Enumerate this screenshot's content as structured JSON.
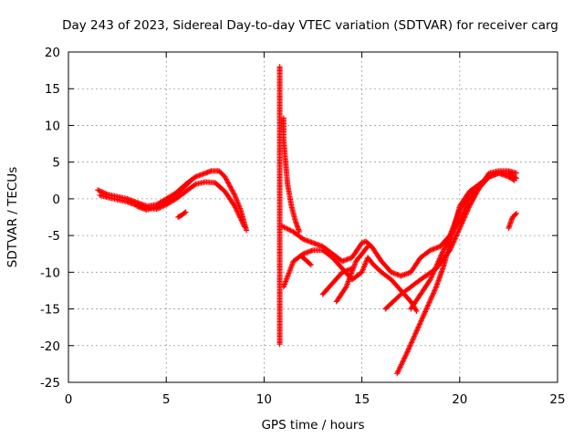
{
  "chart_data": {
    "type": "scatter",
    "title": "Day 243 of 2023, Sidereal Day-to-day VTEC variation (SDTVAR) for receiver carg",
    "xlabel": "GPS time / hours",
    "ylabel": "SDTVAR / TECUs",
    "xlim": [
      0,
      25
    ],
    "ylim": [
      -25,
      20
    ],
    "xticks": [
      0,
      5,
      10,
      15,
      20,
      25
    ],
    "yticks": [
      20,
      15,
      10,
      5,
      0,
      -5,
      -10,
      -15,
      -20,
      -25
    ],
    "xtick_labels": [
      "0",
      "5",
      "10",
      "15",
      "20",
      "25"
    ],
    "ytick_labels": [
      "20",
      "15",
      "10",
      "5",
      "0",
      "-5",
      "-10",
      "-15",
      "-20",
      "-25"
    ],
    "grid": true,
    "marker": "plus",
    "color": "#ff0000",
    "series": [
      {
        "name": "morning-band-a",
        "points": [
          [
            1.5,
            1.2
          ],
          [
            2,
            0.6
          ],
          [
            2.5,
            0.3
          ],
          [
            3,
            0
          ],
          [
            3.5,
            -0.5
          ],
          [
            4,
            -1
          ],
          [
            4.5,
            -0.8
          ],
          [
            5,
            0
          ],
          [
            5.5,
            0.8
          ],
          [
            6,
            2
          ],
          [
            6.5,
            3
          ],
          [
            7,
            3.5
          ],
          [
            7.3,
            3.8
          ],
          [
            7.7,
            3.8
          ],
          [
            8,
            3
          ],
          [
            8.5,
            0.5
          ],
          [
            8.8,
            -1.5
          ],
          [
            9.1,
            -4.3
          ]
        ]
      },
      {
        "name": "morning-band-b",
        "points": [
          [
            1.6,
            0.5
          ],
          [
            2,
            0.2
          ],
          [
            2.5,
            -0.1
          ],
          [
            3,
            -0.4
          ],
          [
            3.5,
            -0.9
          ],
          [
            4,
            -1.2
          ],
          [
            4.5,
            -1.4
          ],
          [
            5,
            -0.8
          ],
          [
            5.5,
            0
          ],
          [
            6,
            1
          ],
          [
            6.5,
            2
          ],
          [
            7,
            2.3
          ],
          [
            7.5,
            2.2
          ],
          [
            8,
            1
          ],
          [
            8.5,
            -1
          ],
          [
            9,
            -3.8
          ]
        ]
      },
      {
        "name": "morning-band-c",
        "points": [
          [
            3.5,
            -1
          ],
          [
            4,
            -1.5
          ],
          [
            4.5,
            -1.1
          ],
          [
            5,
            -0.3
          ],
          [
            5.5,
            0.6
          ],
          [
            6,
            1.8
          ],
          [
            6.3,
            2.6
          ]
        ]
      },
      {
        "name": "short-arc-6h",
        "points": [
          [
            5.6,
            -2.5
          ],
          [
            5.8,
            -2.2
          ],
          [
            6,
            -1.8
          ]
        ]
      },
      {
        "name": "vertical-spike",
        "points": [
          [
            10.8,
            18
          ],
          [
            10.8,
            16
          ],
          [
            10.8,
            14
          ],
          [
            10.8,
            12
          ],
          [
            10.8,
            10
          ],
          [
            10.8,
            8
          ],
          [
            10.8,
            6
          ],
          [
            10.8,
            4
          ],
          [
            10.8,
            2
          ],
          [
            10.8,
            0
          ],
          [
            10.8,
            -2
          ],
          [
            10.8,
            -4
          ],
          [
            10.8,
            -6
          ],
          [
            10.8,
            -8
          ],
          [
            10.8,
            -10
          ],
          [
            10.8,
            -12
          ],
          [
            10.8,
            -14
          ],
          [
            10.8,
            -16
          ],
          [
            10.8,
            -18
          ],
          [
            10.8,
            -19.8
          ]
        ]
      },
      {
        "name": "decay-from-spike",
        "points": [
          [
            11,
            11
          ],
          [
            11,
            8
          ],
          [
            11.1,
            5
          ],
          [
            11.2,
            2
          ],
          [
            11.4,
            -1
          ],
          [
            11.6,
            -3
          ],
          [
            11.8,
            -4.5
          ]
        ]
      },
      {
        "name": "midday-upper",
        "points": [
          [
            10.9,
            -3.7
          ],
          [
            11.5,
            -4.5
          ],
          [
            12,
            -5.5
          ],
          [
            12.5,
            -6
          ],
          [
            13,
            -6.5
          ],
          [
            13.5,
            -7.5
          ],
          [
            14,
            -8.5
          ],
          [
            14.5,
            -8
          ],
          [
            15,
            -6
          ],
          [
            15.2,
            -5.8
          ],
          [
            15.5,
            -6.5
          ],
          [
            16,
            -8.5
          ],
          [
            16.5,
            -10
          ],
          [
            17,
            -10.5
          ],
          [
            17.5,
            -10
          ],
          [
            18,
            -8
          ],
          [
            18.5,
            -7
          ],
          [
            19,
            -6.5
          ],
          [
            19.5,
            -5
          ],
          [
            20,
            -3
          ],
          [
            20.5,
            0
          ],
          [
            21,
            1.5
          ],
          [
            21.5,
            3.5
          ],
          [
            22,
            3.8
          ],
          [
            22.5,
            3.8
          ],
          [
            22.9,
            3.5
          ]
        ]
      },
      {
        "name": "midday-middle",
        "points": [
          [
            11,
            -12
          ],
          [
            11.5,
            -8.5
          ],
          [
            12,
            -7.5
          ],
          [
            12.5,
            -7
          ],
          [
            13,
            -7
          ],
          [
            13.5,
            -8
          ],
          [
            14,
            -9.5
          ],
          [
            14.5,
            -11
          ],
          [
            15,
            -10
          ],
          [
            15.3,
            -8
          ],
          [
            15.6,
            -9
          ],
          [
            16,
            -10
          ],
          [
            16.5,
            -11
          ],
          [
            17,
            -12.5
          ],
          [
            17.5,
            -14
          ],
          [
            17.8,
            -15.3
          ]
        ]
      },
      {
        "name": "midday-lower",
        "points": [
          [
            11.9,
            -7.8
          ],
          [
            12.2,
            -8.5
          ],
          [
            12.4,
            -9
          ]
        ]
      },
      {
        "name": "short-arc-13h",
        "points": [
          [
            13,
            -13
          ],
          [
            13.5,
            -11.5
          ],
          [
            14,
            -10
          ],
          [
            14.5,
            -9.5
          ]
        ]
      },
      {
        "name": "short-arc-14h",
        "points": [
          [
            13.7,
            -14
          ],
          [
            14.2,
            -12
          ],
          [
            14.7,
            -8.5
          ],
          [
            15,
            -7.5
          ],
          [
            15.3,
            -6.5
          ]
        ]
      },
      {
        "name": "rise-from-16h",
        "points": [
          [
            16.2,
            -15
          ],
          [
            17,
            -13
          ],
          [
            18,
            -11
          ],
          [
            18.8,
            -9.5
          ],
          [
            19.5,
            -7
          ],
          [
            20,
            -4
          ],
          [
            20.5,
            -1
          ],
          [
            21,
            1.5
          ],
          [
            21.5,
            3
          ],
          [
            22,
            3.5
          ],
          [
            22.5,
            3
          ],
          [
            22.8,
            2.5
          ]
        ]
      },
      {
        "name": "rise-from-17h",
        "points": [
          [
            16.8,
            -23.8
          ],
          [
            17.3,
            -21
          ],
          [
            17.8,
            -18
          ],
          [
            18.3,
            -15
          ],
          [
            18.8,
            -12
          ],
          [
            19.2,
            -9
          ],
          [
            19.6,
            -5
          ],
          [
            20,
            -1
          ],
          [
            20.5,
            1
          ],
          [
            21,
            2
          ],
          [
            21.5,
            3
          ],
          [
            22,
            3.5
          ],
          [
            22.5,
            3.5
          ],
          [
            22.9,
            2.8
          ]
        ]
      },
      {
        "name": "rise-from-18h",
        "points": [
          [
            17.5,
            -15
          ],
          [
            18,
            -13
          ],
          [
            18.5,
            -11
          ],
          [
            19,
            -8
          ],
          [
            19.5,
            -5
          ],
          [
            20,
            -1.5
          ],
          [
            20.5,
            0.5
          ],
          [
            21,
            2
          ]
        ]
      },
      {
        "name": "late-arc",
        "points": [
          [
            22.5,
            -4
          ],
          [
            22.7,
            -2.5
          ],
          [
            22.9,
            -2
          ]
        ]
      }
    ]
  }
}
